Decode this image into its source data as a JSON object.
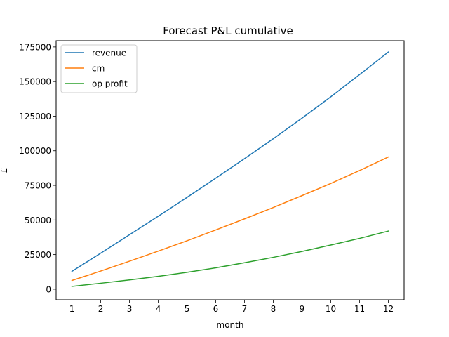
{
  "chart_data": {
    "type": "line",
    "title": "Forecast P&L cumulative",
    "xlabel": "month",
    "ylabel": "£",
    "x": [
      1,
      2,
      3,
      4,
      5,
      6,
      7,
      8,
      9,
      10,
      11,
      12
    ],
    "xlim": [
      0.45,
      12.55
    ],
    "ylim": [
      -7650,
      179500
    ],
    "xticks": [
      "1",
      "2",
      "3",
      "4",
      "5",
      "6",
      "7",
      "8",
      "9",
      "10",
      "11",
      "12"
    ],
    "yticks": [
      0,
      25000,
      50000,
      75000,
      100000,
      125000,
      150000,
      175000
    ],
    "ytick_labels": [
      "0",
      "25000",
      "50000",
      "75000",
      "100000",
      "125000",
      "150000",
      "175000"
    ],
    "grid": false,
    "legend_position": "top-left",
    "series": [
      {
        "name": "revenue",
        "color": "#1f77b4",
        "values": [
          12900,
          26000,
          39300,
          52700,
          66300,
          80200,
          94300,
          108700,
          123600,
          139000,
          155000,
          171300
        ]
      },
      {
        "name": "cm",
        "color": "#ff7f0e",
        "values": [
          6300,
          13100,
          20200,
          27500,
          35000,
          42800,
          50800,
          59000,
          67600,
          76400,
          85700,
          95500
        ]
      },
      {
        "name": "op profit",
        "color": "#2ca02c",
        "values": [
          2000,
          4300,
          6700,
          9300,
          12200,
          15400,
          19100,
          23000,
          27300,
          31900,
          36700,
          42000
        ]
      }
    ]
  }
}
